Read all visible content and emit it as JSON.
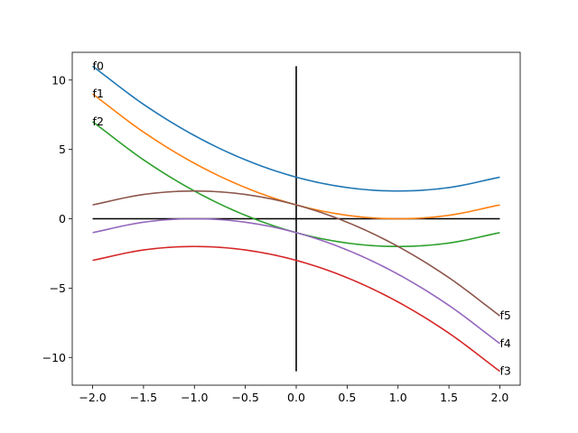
{
  "chart_data": {
    "type": "line",
    "xlim": [
      -2.2,
      2.2
    ],
    "ylim": [
      -12.0,
      12.0
    ],
    "xticks": [
      -2.0,
      -1.5,
      -1.0,
      -0.5,
      0.0,
      0.5,
      1.0,
      1.5,
      2.0
    ],
    "xtick_labels": [
      "−2.0",
      "−1.5",
      "−1.0",
      "−0.5",
      "0.0",
      "0.5",
      "1.0",
      "1.5",
      "2.0"
    ],
    "yticks": [
      -10,
      -5,
      0,
      5,
      10
    ],
    "ytick_labels": [
      "−10",
      "−5",
      "0",
      "5",
      "10"
    ],
    "grid": false,
    "reference_lines": [
      {
        "orientation": "horizontal",
        "y": 0,
        "from": -2,
        "to": 2,
        "color": "#000000"
      },
      {
        "orientation": "vertical",
        "x": 0,
        "from": -11,
        "to": 11,
        "color": "#000000"
      }
    ],
    "series": [
      {
        "name": "f0",
        "color": "#1f77b4",
        "label_end": "start",
        "x": [
          -2.0,
          -1.5,
          -1.0,
          -0.5,
          0.0,
          0.5,
          1.0,
          1.5,
          2.0
        ],
        "y": [
          11.0,
          8.25,
          6.0,
          4.25,
          3.0,
          2.25,
          2.0,
          2.25,
          3.0
        ]
      },
      {
        "name": "f1",
        "color": "#ff7f0e",
        "label_end": "start",
        "x": [
          -2.0,
          -1.5,
          -1.0,
          -0.5,
          0.0,
          0.5,
          1.0,
          1.5,
          2.0
        ],
        "y": [
          9.0,
          6.25,
          4.0,
          2.25,
          1.0,
          0.25,
          0.0,
          0.25,
          1.0
        ]
      },
      {
        "name": "f2",
        "color": "#2ca02c",
        "label_end": "start",
        "x": [
          -2.0,
          -1.5,
          -1.0,
          -0.5,
          0.0,
          0.5,
          1.0,
          1.5,
          2.0
        ],
        "y": [
          7.0,
          4.25,
          2.0,
          0.25,
          -1.0,
          -1.75,
          -2.0,
          -1.75,
          -1.0
        ]
      },
      {
        "name": "f3",
        "color": "#d62728",
        "label_end": "end",
        "x": [
          -2.0,
          -1.5,
          -1.0,
          -0.5,
          0.0,
          0.5,
          1.0,
          1.5,
          2.0
        ],
        "y": [
          -3.0,
          -2.25,
          -2.0,
          -2.25,
          -3.0,
          -4.25,
          -6.0,
          -8.25,
          -11.0
        ]
      },
      {
        "name": "f4",
        "color": "#9467bd",
        "label_end": "end",
        "x": [
          -2.0,
          -1.5,
          -1.0,
          -0.5,
          0.0,
          0.5,
          1.0,
          1.5,
          2.0
        ],
        "y": [
          -1.0,
          -0.25,
          0.0,
          -0.25,
          -1.0,
          -2.25,
          -4.0,
          -6.25,
          -9.0
        ]
      },
      {
        "name": "f5",
        "color": "#8c564b",
        "label_end": "end",
        "x": [
          -2.0,
          -1.5,
          -1.0,
          -0.5,
          0.0,
          0.5,
          1.0,
          1.5,
          2.0
        ],
        "y": [
          1.0,
          1.75,
          2.0,
          1.75,
          1.0,
          -0.25,
          -2.0,
          -4.25,
          -7.0
        ]
      }
    ]
  }
}
